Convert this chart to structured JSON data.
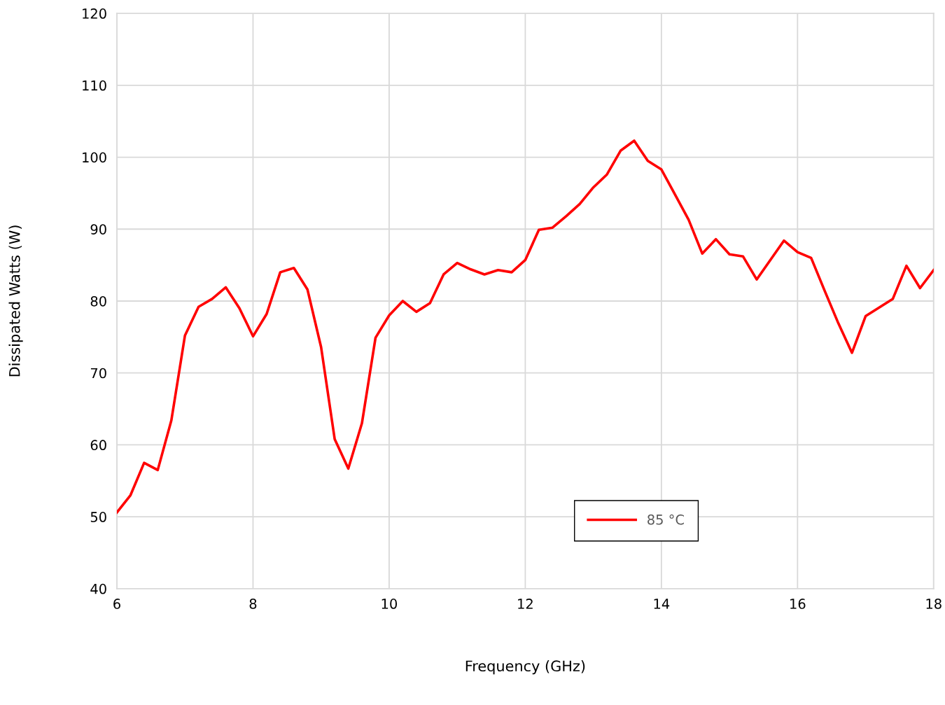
{
  "chart_data": {
    "type": "line",
    "xlabel": "Frequency (GHz)",
    "ylabel": "Dissipated Watts (W)",
    "x": [
      6.0,
      6.2,
      6.4,
      6.6,
      6.8,
      7.0,
      7.2,
      7.4,
      7.6,
      7.8,
      8.0,
      8.2,
      8.4,
      8.6,
      8.8,
      9.0,
      9.2,
      9.4,
      9.6,
      9.8,
      10.0,
      10.2,
      10.4,
      10.6,
      10.8,
      11.0,
      11.2,
      11.4,
      11.6,
      11.8,
      12.0,
      12.2,
      12.4,
      12.6,
      12.8,
      13.0,
      13.2,
      13.4,
      13.6,
      13.8,
      14.0,
      14.2,
      14.4,
      14.6,
      14.8,
      15.0,
      15.2,
      15.4,
      15.6,
      15.8,
      16.0,
      16.2,
      16.4,
      16.6,
      16.8,
      17.0,
      17.2,
      17.4,
      17.6,
      17.8,
      18.0
    ],
    "series": [
      {
        "name": "85 °C",
        "color": "#ff0000",
        "values": [
          50.6,
          53.0,
          57.5,
          56.5,
          63.4,
          75.2,
          79.2,
          80.3,
          81.9,
          79.0,
          75.1,
          78.2,
          84.0,
          84.6,
          81.6,
          73.6,
          60.8,
          56.7,
          63.0,
          74.9,
          78.0,
          80.0,
          78.5,
          79.7,
          83.7,
          85.3,
          84.4,
          83.7,
          84.3,
          84.0,
          85.7,
          89.9,
          90.2,
          91.8,
          93.5,
          95.8,
          97.6,
          100.9,
          102.3,
          99.5,
          98.3,
          94.8,
          91.3,
          86.6,
          88.6,
          86.5,
          86.2,
          83.0,
          85.7,
          88.4,
          86.8,
          86.0,
          81.4,
          76.9,
          72.8,
          77.9,
          79.1,
          80.3,
          84.9,
          81.8,
          84.3
        ]
      }
    ],
    "xlim": [
      6,
      18
    ],
    "xticks": [
      6,
      8,
      10,
      12,
      14,
      16,
      18
    ],
    "ylim": [
      40,
      120
    ],
    "yticks": [
      40,
      50,
      60,
      70,
      80,
      90,
      100,
      110,
      120
    ],
    "grid": true,
    "legend": "bottom",
    "marker": "none",
    "line_style": "solid"
  }
}
